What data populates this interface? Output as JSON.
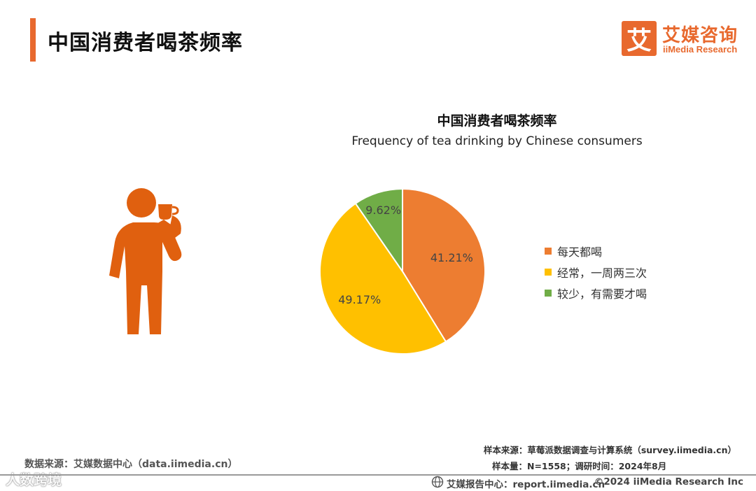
{
  "header": {
    "page_title": "中国消费者喝茶频率",
    "logo_mark": "艾",
    "logo_cn": "艾媒咨询",
    "logo_en": "iiMedia Research"
  },
  "colors": {
    "accent": "#e8692e",
    "person": "#e0600f"
  },
  "chart_data": {
    "type": "pie",
    "title": "中国消费者喝茶频率",
    "subtitle": "Frequency of tea drinking by Chinese consumers",
    "categories": [
      "每天都喝",
      "经常，一周两三次",
      "较少，有需要才喝"
    ],
    "values": [
      41.21,
      49.17,
      9.62
    ],
    "data_labels": [
      "41.21%",
      "49.17%",
      "9.62%"
    ],
    "colors": [
      "#ed7d31",
      "#ffc000",
      "#70ad47"
    ],
    "legend_position": "right"
  },
  "sources": {
    "left": "数据来源：艾媒数据中心（data.iimedia.cn）",
    "sample_source": "样本来源：草莓派数据调查与计算系统（survey.iimedia.cn）",
    "sample_size": "样本量：N=1558；调研时间：2024年8月"
  },
  "footer": {
    "report_center": "艾媒报告中心：report.iimedia.cn",
    "copyright": "©2024  iiMedia Research  Inc",
    "watermark": "人数跨境"
  }
}
